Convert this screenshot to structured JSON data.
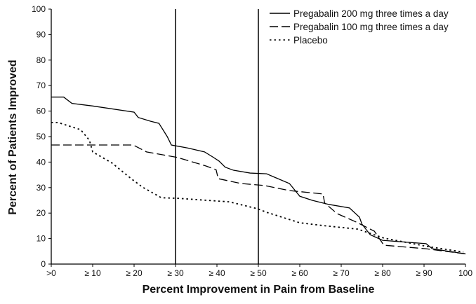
{
  "chart_data": {
    "type": "line",
    "title": "",
    "xlabel": "Percent Improvement in Pain from Baseline",
    "ylabel": "Percent of Patients Improved",
    "xlim": [
      0,
      100
    ],
    "ylim": [
      0,
      100
    ],
    "x_ticks": [
      0,
      10,
      20,
      30,
      40,
      50,
      60,
      70,
      80,
      90,
      100
    ],
    "x_tick_labels": [
      ">0",
      "≥ 10",
      "≥ 20",
      "≥ 30",
      "≥ 40",
      "≥ 50",
      "≥ 60",
      "≥ 70",
      "≥ 80",
      "≥ 90",
      "100"
    ],
    "y_ticks": [
      0,
      10,
      20,
      30,
      40,
      50,
      60,
      70,
      80,
      90,
      100
    ],
    "y_tick_labels": [
      "0",
      "10",
      "20",
      "30",
      "40",
      "50",
      "60",
      "70",
      "80",
      "90",
      "100"
    ],
    "grid": false,
    "reference_lines_x": [
      30,
      50
    ],
    "legend_position": "top-right",
    "series": [
      {
        "name": "Pregabalin 200 mg three times a day",
        "style": "solid",
        "x": [
          0,
          3,
          5,
          10,
          20,
          21,
          24,
          26,
          28,
          29,
          33,
          37,
          39,
          40.5,
          42,
          44,
          48,
          52,
          54,
          57.5,
          60,
          63,
          67,
          72,
          74.4,
          75,
          77,
          80,
          90.5,
          92,
          100
        ],
        "y": [
          65.5,
          65.5,
          63,
          62,
          59.6,
          57.5,
          56,
          55.2,
          50,
          46.7,
          45.5,
          44,
          42,
          40.4,
          38,
          36.8,
          35.7,
          35.4,
          34,
          31.6,
          26.6,
          25,
          23.4,
          22,
          18.4,
          15.7,
          11.5,
          9.3,
          8,
          6,
          4
        ]
      },
      {
        "name": "Pregabalin 100 mg three times a day",
        "style": "dashed",
        "x": [
          0,
          19.8,
          23,
          30.5,
          37.3,
          39.8,
          40.3,
          45.8,
          51.5,
          57.6,
          65.6,
          66,
          69,
          73.6,
          78,
          80.3,
          90.5,
          100
        ],
        "y": [
          46.7,
          46.7,
          44,
          41.8,
          38.5,
          37,
          33.5,
          31.6,
          30.8,
          28.8,
          27.5,
          24,
          19.8,
          16.5,
          12.9,
          7.4,
          6,
          4
        ]
      },
      {
        "name": "Placebo",
        "style": "dotted",
        "x": [
          0,
          1.7,
          7.1,
          9.2,
          10,
          14.7,
          19.3,
          22,
          26.6,
          30.5,
          43,
          49.8,
          52,
          60,
          65.6,
          74,
          80.3,
          90.5,
          99.5
        ],
        "y": [
          55.5,
          55.5,
          52.7,
          48.6,
          44,
          39.6,
          33.5,
          30.2,
          26,
          25.8,
          24.4,
          21.7,
          20.3,
          16.2,
          15.1,
          13.7,
          10.2,
          7,
          4.7
        ]
      }
    ]
  }
}
